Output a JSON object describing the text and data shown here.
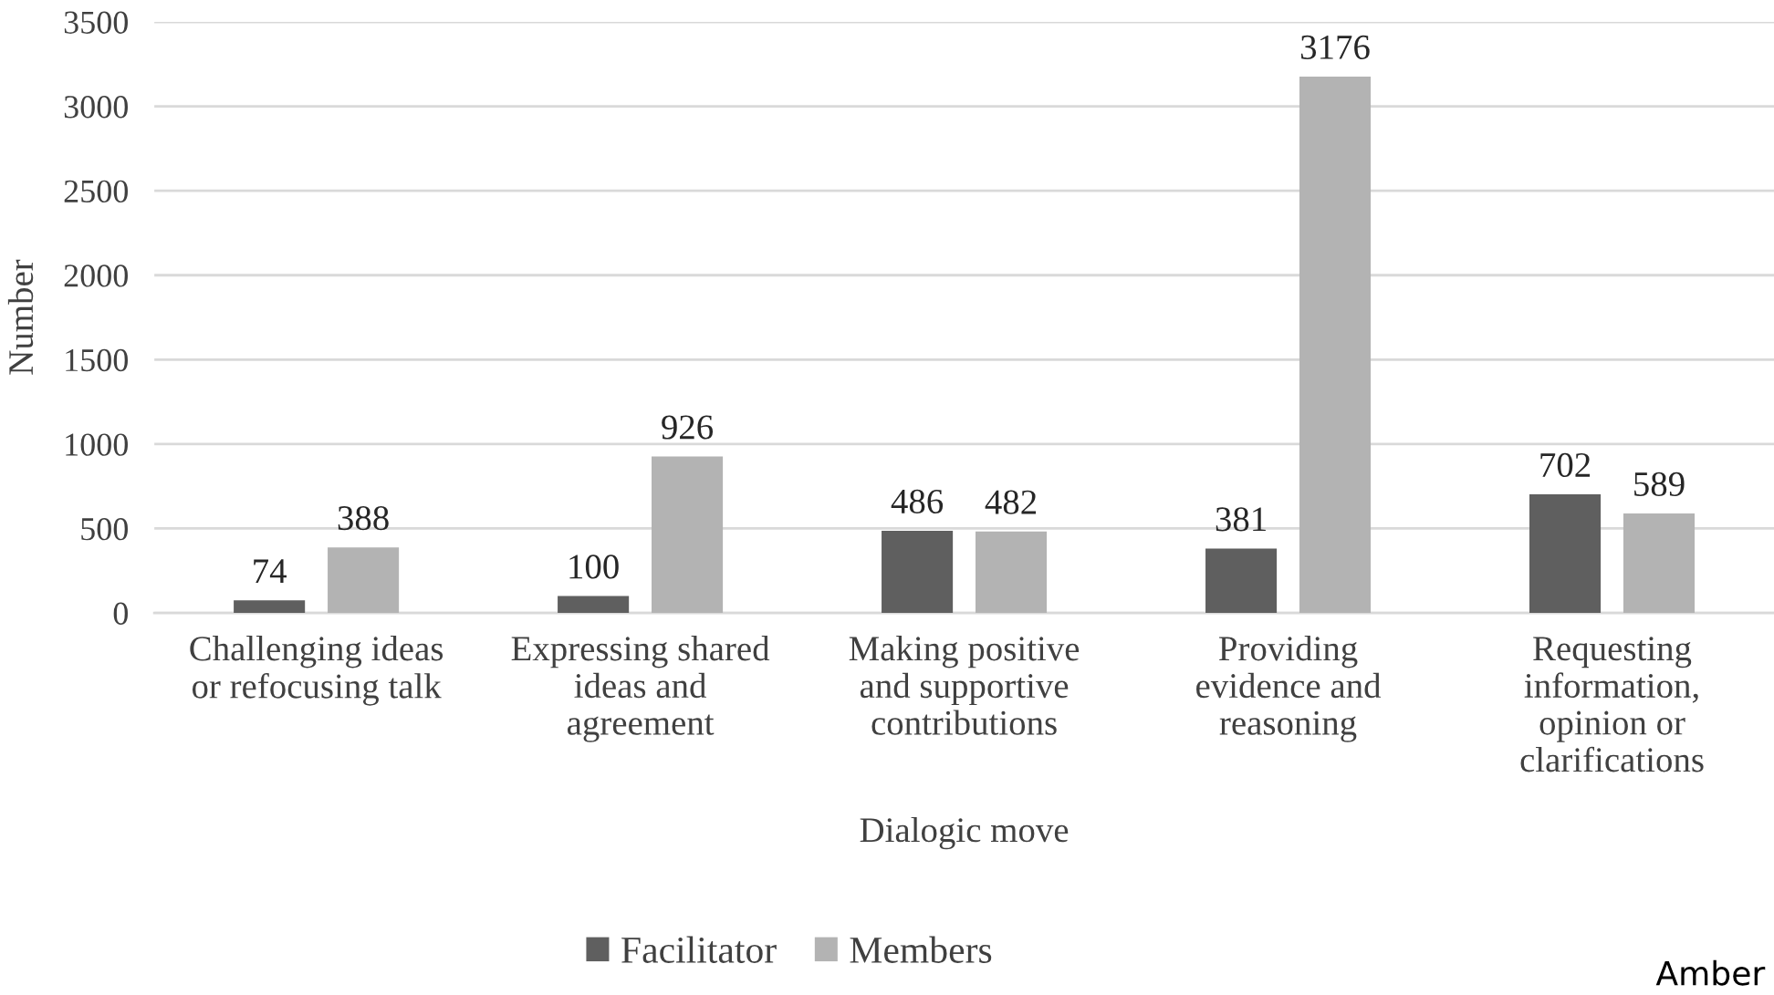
{
  "chart_data": {
    "type": "bar",
    "xlabel": "Dialogic move",
    "ylabel": "Number",
    "categories": [
      "Challenging ideas\nor refocusing talk",
      "Expressing shared\nideas and\nagreement",
      "Making positive\nand supportive\ncontributions",
      "Providing\nevidence and\nreasoning",
      "Requesting\ninformation,\nopinion or\nclarifications"
    ],
    "series": [
      {
        "name": "Facilitator",
        "color": "#5f5f5f",
        "values": [
          74,
          100,
          486,
          381,
          702
        ]
      },
      {
        "name": "Members",
        "color": "#b3b3b3",
        "values": [
          388,
          926,
          482,
          3176,
          589
        ]
      }
    ],
    "ylim": [
      0,
      3500
    ],
    "yticks": [
      0,
      500,
      1000,
      1500,
      2000,
      2500,
      3000,
      3500
    ],
    "grid": "y",
    "legend": "bottom",
    "data_labels": true,
    "annotations": [
      "Amber"
    ]
  }
}
